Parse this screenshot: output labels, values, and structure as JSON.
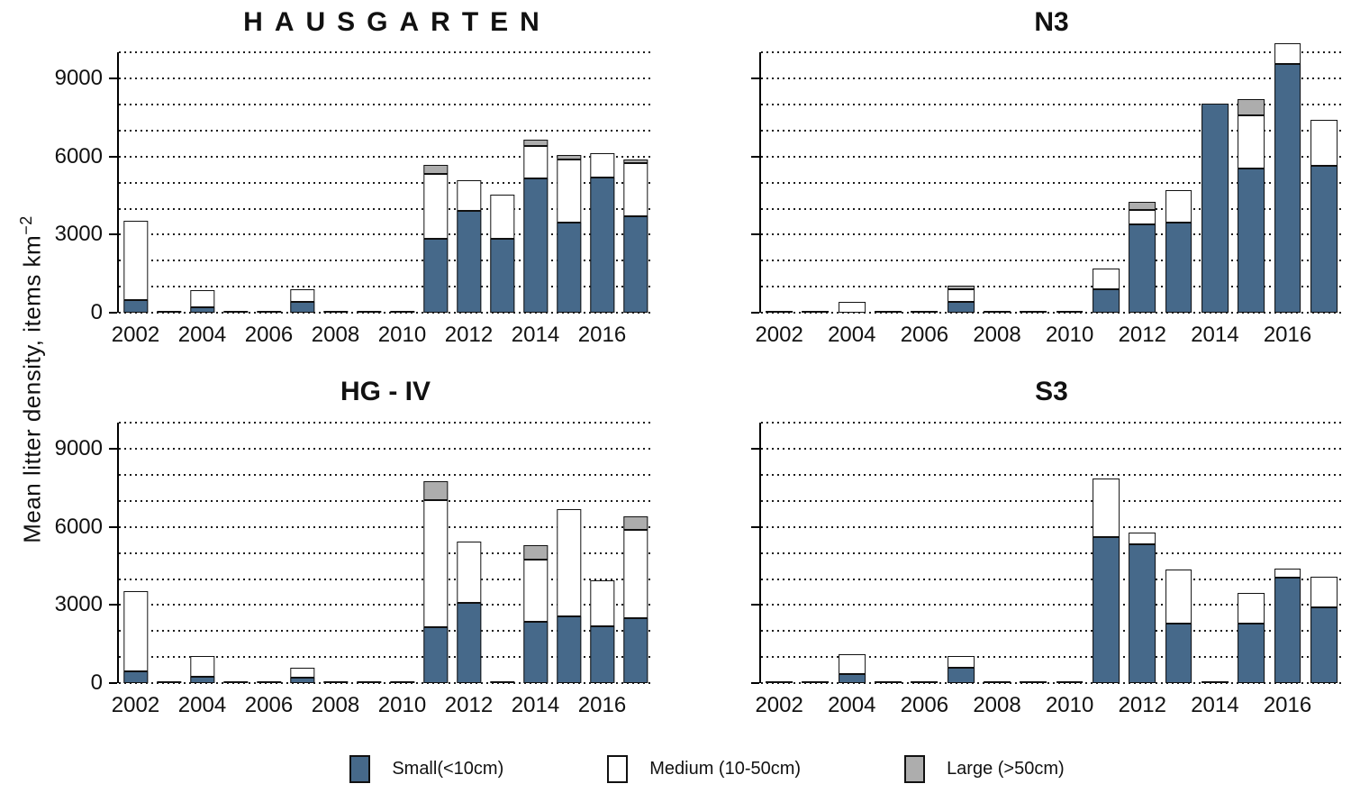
{
  "figure": {
    "y_axis_label": {
      "text": "Mean litter density, items km",
      "superscript": "−2"
    },
    "y_tick_values": [
      0,
      3000,
      6000,
      9000
    ],
    "x_tick_labels": [
      "2002",
      "2004",
      "2006",
      "2008",
      "2010",
      "2012",
      "2014",
      "2016"
    ],
    "gridline_step": 1000,
    "gridline_max": 10000,
    "scale_max": 10500
  },
  "colors": {
    "small": "#46698a",
    "medium": "#ffffff",
    "large": "#adadad",
    "outline": "#111111"
  },
  "legend": {
    "items": [
      {
        "label": "Small(<10cm)",
        "color_key": "small"
      },
      {
        "label": "Medium (10-50cm)",
        "color_key": "medium"
      },
      {
        "label": "Large (>50cm)",
        "color_key": "large"
      }
    ]
  },
  "chart_data": [
    {
      "type": "bar",
      "stacked": true,
      "title": "HAUSGARTEN",
      "categories": [
        2002,
        2003,
        2004,
        2005,
        2006,
        2007,
        2008,
        2009,
        2010,
        2011,
        2012,
        2013,
        2014,
        2015,
        2016,
        2017
      ],
      "series": [
        {
          "name": "Small(<10cm)",
          "values": [
            500,
            0,
            200,
            0,
            0,
            400,
            0,
            0,
            0,
            2850,
            3900,
            2850,
            5150,
            3450,
            5200,
            3700
          ]
        },
        {
          "name": "Medium (10-50cm)",
          "values": [
            3050,
            0,
            650,
            0,
            0,
            500,
            0,
            0,
            0,
            2500,
            1200,
            1700,
            1250,
            2450,
            950,
            2050
          ]
        },
        {
          "name": "Large (>50cm)",
          "values": [
            0,
            0,
            0,
            0,
            0,
            0,
            0,
            0,
            0,
            350,
            0,
            0,
            250,
            150,
            0,
            150
          ]
        }
      ],
      "ylabel": "Mean litter density, items km−2",
      "ylim": [
        0,
        10500
      ],
      "grid": "dotted horizontal every 1000",
      "legend_position": "bottom"
    },
    {
      "type": "bar",
      "stacked": true,
      "title": "N3",
      "categories": [
        2002,
        2003,
        2004,
        2005,
        2006,
        2007,
        2008,
        2009,
        2010,
        2011,
        2012,
        2013,
        2014,
        2015,
        2016,
        2017
      ],
      "series": [
        {
          "name": "Small(<10cm)",
          "values": [
            0,
            0,
            0,
            0,
            0,
            400,
            0,
            0,
            0,
            900,
            3400,
            3450,
            8050,
            5550,
            9550,
            5650
          ]
        },
        {
          "name": "Medium (10-50cm)",
          "values": [
            0,
            0,
            400,
            0,
            0,
            500,
            0,
            0,
            0,
            800,
            550,
            1250,
            0,
            2050,
            800,
            1750
          ]
        },
        {
          "name": "Large (>50cm)",
          "values": [
            0,
            0,
            0,
            0,
            0,
            150,
            0,
            0,
            0,
            0,
            300,
            0,
            0,
            600,
            0,
            0
          ]
        }
      ],
      "ylabel": "Mean litter density, items km−2",
      "ylim": [
        0,
        10500
      ],
      "grid": "dotted horizontal every 1000",
      "legend_position": "bottom"
    },
    {
      "type": "bar",
      "stacked": true,
      "title": "HG - IV",
      "categories": [
        2002,
        2003,
        2004,
        2005,
        2006,
        2007,
        2008,
        2009,
        2010,
        2011,
        2012,
        2013,
        2014,
        2015,
        2016,
        2017
      ],
      "series": [
        {
          "name": "Small(<10cm)",
          "values": [
            450,
            0,
            250,
            0,
            0,
            200,
            0,
            0,
            0,
            2150,
            3100,
            0,
            2350,
            2550,
            2200,
            2500
          ]
        },
        {
          "name": "Medium (10-50cm)",
          "values": [
            3100,
            0,
            800,
            0,
            0,
            400,
            0,
            0,
            0,
            4900,
            2350,
            0,
            2400,
            4150,
            1750,
            3400
          ]
        },
        {
          "name": "Large (>50cm)",
          "values": [
            0,
            0,
            0,
            0,
            0,
            0,
            0,
            0,
            0,
            700,
            0,
            0,
            550,
            0,
            0,
            500
          ]
        }
      ],
      "ylabel": "Mean litter density, items km−2",
      "ylim": [
        0,
        10500
      ],
      "grid": "dotted horizontal every 1000",
      "legend_position": "bottom"
    },
    {
      "type": "bar",
      "stacked": true,
      "title": "S3",
      "categories": [
        2002,
        2003,
        2004,
        2005,
        2006,
        2007,
        2008,
        2009,
        2010,
        2011,
        2012,
        2013,
        2014,
        2015,
        2016,
        2017
      ],
      "series": [
        {
          "name": "Small(<10cm)",
          "values": [
            0,
            0,
            350,
            0,
            0,
            600,
            0,
            0,
            0,
            5600,
            5350,
            2300,
            0,
            2300,
            4050,
            2900
          ]
        },
        {
          "name": "Medium (10-50cm)",
          "values": [
            0,
            0,
            750,
            0,
            0,
            450,
            0,
            0,
            0,
            2250,
            450,
            2050,
            0,
            1150,
            350,
            1200
          ]
        },
        {
          "name": "Large (>50cm)",
          "values": [
            0,
            0,
            0,
            0,
            0,
            0,
            0,
            0,
            0,
            0,
            0,
            0,
            0,
            0,
            0,
            0
          ]
        }
      ],
      "ylabel": "Mean litter density, items km−2",
      "ylim": [
        0,
        10500
      ],
      "grid": "dotted horizontal every 1000",
      "legend_position": "bottom"
    }
  ]
}
